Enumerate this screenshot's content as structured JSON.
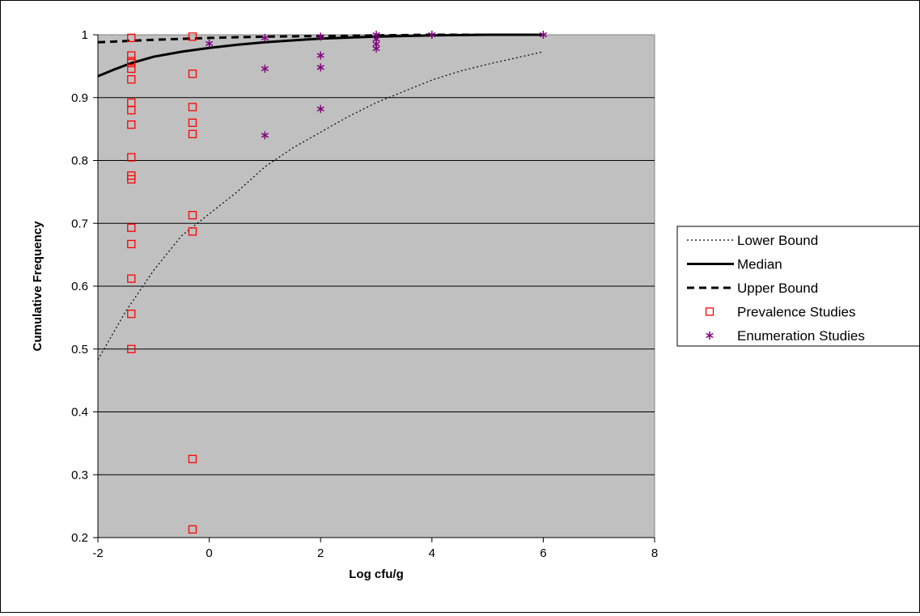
{
  "chart_data": {
    "type": "scatter",
    "xlabel": "Log cfu/g",
    "ylabel": "Cumulative Frequency",
    "xlim": [
      -2,
      8
    ],
    "ylim": [
      0.2,
      1
    ],
    "x_ticks": [
      "-2",
      "0",
      "2",
      "4",
      "6",
      "8"
    ],
    "y_ticks": [
      "1",
      "0.9",
      "0.8",
      "0.7",
      "0.6",
      "0.5",
      "0.4",
      "0.3",
      "0.2"
    ],
    "grid": "horizontal",
    "legend_position": "right",
    "plot_background": "#c0c0c0",
    "series": [
      {
        "name": "Lower Bound",
        "kind": "line",
        "style": "dotted",
        "color": "#000000",
        "points": [
          [
            -2,
            0.483
          ],
          [
            -1.5,
            0.56
          ],
          [
            -1,
            0.625
          ],
          [
            -0.5,
            0.68
          ],
          [
            0,
            0.715
          ],
          [
            0.5,
            0.75
          ],
          [
            1,
            0.79
          ],
          [
            1.5,
            0.82
          ],
          [
            2,
            0.845
          ],
          [
            2.5,
            0.87
          ],
          [
            3,
            0.892
          ],
          [
            3.5,
            0.91
          ],
          [
            4,
            0.928
          ],
          [
            4.5,
            0.942
          ],
          [
            5,
            0.953
          ],
          [
            5.5,
            0.963
          ],
          [
            6,
            0.973
          ]
        ]
      },
      {
        "name": "Median",
        "kind": "line",
        "style": "solid",
        "color": "#000000",
        "points": [
          [
            -2,
            0.934
          ],
          [
            -1.7,
            0.945
          ],
          [
            -1.4,
            0.955
          ],
          [
            -1,
            0.965
          ],
          [
            -0.5,
            0.973
          ],
          [
            0,
            0.979
          ],
          [
            0.5,
            0.984
          ],
          [
            1,
            0.988
          ],
          [
            2,
            0.994
          ],
          [
            3,
            0.997
          ],
          [
            4,
            0.999
          ],
          [
            5,
            1.0
          ],
          [
            6,
            1.0
          ]
        ]
      },
      {
        "name": "Upper Bound",
        "kind": "line",
        "style": "dashed",
        "color": "#000000",
        "points": [
          [
            -2,
            0.988
          ],
          [
            -1,
            0.992
          ],
          [
            0,
            0.995
          ],
          [
            1,
            0.997
          ],
          [
            2,
            0.998
          ],
          [
            3,
            0.999
          ],
          [
            4,
            1.0
          ],
          [
            5,
            1.0
          ],
          [
            6,
            1.0
          ]
        ]
      },
      {
        "name": "Prevalence Studies",
        "kind": "scatter",
        "marker": "square",
        "color": "#ff0000",
        "points": [
          [
            -1.4,
            0.995
          ],
          [
            -1.4,
            0.967
          ],
          [
            -1.4,
            0.958
          ],
          [
            -1.4,
            0.955
          ],
          [
            -1.4,
            0.946
          ],
          [
            -1.4,
            0.929
          ],
          [
            -1.4,
            0.892
          ],
          [
            -1.4,
            0.88
          ],
          [
            -1.4,
            0.857
          ],
          [
            -1.4,
            0.805
          ],
          [
            -1.4,
            0.776
          ],
          [
            -1.4,
            0.77
          ],
          [
            -1.4,
            0.693
          ],
          [
            -1.4,
            0.667
          ],
          [
            -1.4,
            0.612
          ],
          [
            -1.4,
            0.556
          ],
          [
            -1.4,
            0.5
          ],
          [
            -0.3,
            0.997
          ],
          [
            -0.3,
            0.938
          ],
          [
            -0.3,
            0.885
          ],
          [
            -0.3,
            0.86
          ],
          [
            -0.3,
            0.842
          ],
          [
            -0.3,
            0.713
          ],
          [
            -0.3,
            0.687
          ],
          [
            -0.3,
            0.325
          ],
          [
            -0.3,
            0.213
          ]
        ]
      },
      {
        "name": "Enumeration Studies",
        "kind": "scatter",
        "marker": "asterisk",
        "color": "#800080",
        "points": [
          [
            0,
            0.986
          ],
          [
            1,
            0.995
          ],
          [
            1,
            0.946
          ],
          [
            1,
            0.84
          ],
          [
            2,
            0.997
          ],
          [
            2,
            0.967
          ],
          [
            2,
            0.948
          ],
          [
            2,
            0.882
          ],
          [
            3,
            1.0
          ],
          [
            3,
            0.993
          ],
          [
            3,
            0.985
          ],
          [
            3,
            0.978
          ],
          [
            4,
            1.0
          ],
          [
            6,
            1.0
          ]
        ]
      }
    ]
  }
}
